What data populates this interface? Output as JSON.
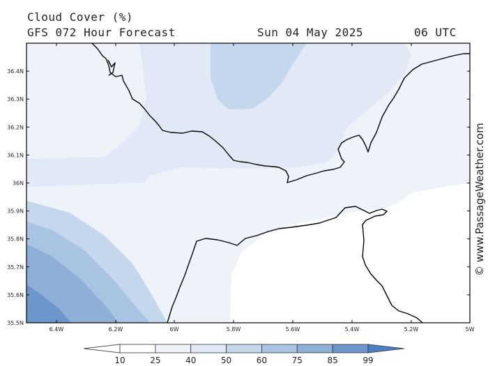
{
  "header": {
    "title": "Cloud Cover (%)",
    "subtitle": "GFS 072 Hour Forecast",
    "date": "Sun 04 May 2025",
    "time": "06 UTC"
  },
  "map": {
    "lat_labels": [
      "36.4N",
      "36.3N",
      "36.2N",
      "36.1N",
      "36N",
      "35.9N",
      "35.8N",
      "35.7N",
      "35.6N",
      "35.5N"
    ],
    "lon_labels": [
      "6.4W",
      "6.2W",
      "6W",
      "5.8W",
      "5.6W",
      "5.4W",
      "5.2W",
      "5W"
    ],
    "field_colors": [
      "#ffffff",
      "#eef3fa",
      "#e0e9f5",
      "#c4d7ec",
      "#a9c3e2",
      "#8eafd8",
      "#6d97cc"
    ]
  },
  "colorbar": {
    "ticks": [
      "10",
      "25",
      "40",
      "50",
      "60",
      "75",
      "85",
      "99"
    ],
    "colors": [
      "#ffffff",
      "#ffffff",
      "#eef3fa",
      "#e0e9f5",
      "#c4d7ec",
      "#a9c3e2",
      "#8eafd8",
      "#6d97cc",
      "#4d7fc0",
      "#4d7fc0"
    ]
  },
  "watermark": "© www.PassageWeather.com"
}
